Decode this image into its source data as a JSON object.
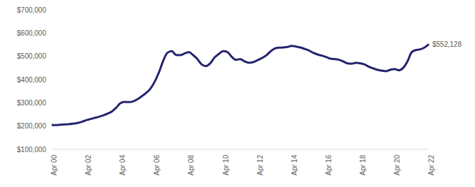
{
  "chart_data": {
    "type": "line",
    "color": "#23236e",
    "line_style": "solid",
    "grid": false,
    "categories": [
      "Apr 00",
      null,
      null,
      null,
      null,
      null,
      null,
      null,
      "Apr 02",
      null,
      null,
      null,
      null,
      null,
      null,
      null,
      "Apr 04",
      null,
      null,
      null,
      null,
      null,
      null,
      null,
      "Apr 06",
      null,
      null,
      null,
      null,
      null,
      null,
      null,
      "Apr 08",
      null,
      null,
      null,
      null,
      null,
      null,
      null,
      "Apr 10",
      null,
      null,
      null,
      null,
      null,
      null,
      null,
      "Apr 12",
      null,
      null,
      null,
      null,
      null,
      null,
      null,
      "Apr 14",
      null,
      null,
      null,
      null,
      null,
      null,
      null,
      "Apr 16",
      null,
      null,
      null,
      null,
      null,
      null,
      null,
      "Apr 18",
      null,
      null,
      null,
      null,
      null,
      null,
      null,
      "Apr 20",
      null,
      null,
      null,
      null,
      null,
      null,
      null,
      "Apr 22"
    ],
    "values": [
      205000,
      204000,
      206000,
      207000,
      208000,
      210000,
      213000,
      218000,
      225000,
      230000,
      235000,
      240000,
      246000,
      253000,
      262000,
      278000,
      298000,
      304000,
      303000,
      306000,
      315000,
      328000,
      342000,
      360000,
      390000,
      430000,
      480000,
      515000,
      522000,
      506000,
      505000,
      512000,
      518000,
      505000,
      488000,
      465000,
      458000,
      470000,
      495000,
      510000,
      522000,
      518000,
      498000,
      485000,
      488000,
      478000,
      472000,
      475000,
      483000,
      492000,
      503000,
      520000,
      533000,
      537000,
      538000,
      540000,
      545000,
      542000,
      538000,
      532000,
      525000,
      515000,
      508000,
      503000,
      497000,
      490000,
      488000,
      485000,
      478000,
      470000,
      468000,
      472000,
      470000,
      465000,
      455000,
      448000,
      442000,
      438000,
      436000,
      442000,
      445000,
      440000,
      450000,
      478000,
      518000,
      527000,
      530000,
      538000,
      552128
    ],
    "ylim": [
      100000,
      700000
    ],
    "yticks": [
      {
        "value": 100000,
        "label": "$100,000"
      },
      {
        "value": 200000,
        "label": "$200,000"
      },
      {
        "value": 300000,
        "label": "$300,000"
      },
      {
        "value": 400000,
        "label": "$400,000"
      },
      {
        "value": 500000,
        "label": "$500,000"
      },
      {
        "value": 600000,
        "label": "$600,000"
      },
      {
        "value": 700000,
        "label": "$700,000"
      }
    ],
    "annotations": [
      {
        "text": "$552,128",
        "category": "Apr 22",
        "value": 552128
      }
    ]
  }
}
